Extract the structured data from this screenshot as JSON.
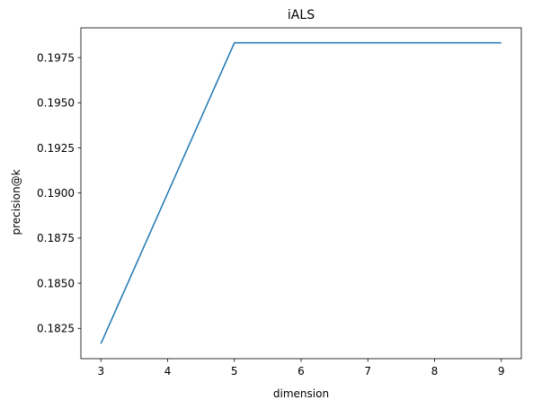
{
  "chart_data": {
    "type": "line",
    "title": "iALS",
    "xlabel": "dimension",
    "ylabel": "precision@k",
    "x": [
      3,
      5,
      7,
      9
    ],
    "series": [
      {
        "values": [
          0.18165,
          0.19832,
          0.19832,
          0.19832
        ],
        "color": "#1f77b4"
      }
    ],
    "xlim": [
      2.7,
      9.3
    ],
    "ylim": [
      0.18082,
      0.19915
    ],
    "xticks": [
      3,
      4,
      5,
      6,
      7,
      8,
      9
    ],
    "xtick_labels": [
      "3",
      "4",
      "5",
      "6",
      "7",
      "8",
      "9"
    ],
    "yticks": [
      0.1825,
      0.185,
      0.1875,
      0.19,
      0.1925,
      0.195,
      0.1975
    ],
    "ytick_labels": [
      "0.1825",
      "0.1850",
      "0.1875",
      "0.1900",
      "0.1925",
      "0.1950",
      "0.1975"
    ],
    "grid": false,
    "legend": false
  }
}
